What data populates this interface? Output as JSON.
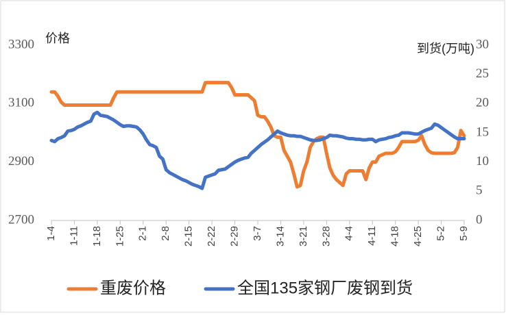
{
  "chart_data": {
    "type": "line",
    "y_label": "价格",
    "y2_label": "到货(万吨)",
    "categories": [
      "1-4",
      null,
      null,
      null,
      null,
      null,
      null,
      "1-11",
      null,
      null,
      null,
      null,
      null,
      null,
      "1-18",
      null,
      null,
      null,
      null,
      null,
      null,
      "1-25",
      null,
      null,
      null,
      null,
      null,
      null,
      "2-1",
      null,
      null,
      null,
      null,
      null,
      null,
      "2-8",
      null,
      null,
      null,
      null,
      null,
      null,
      "2-15",
      null,
      null,
      null,
      null,
      null,
      null,
      "2-22",
      null,
      null,
      null,
      null,
      null,
      null,
      "2-29",
      null,
      null,
      null,
      null,
      null,
      null,
      "3-7",
      null,
      null,
      null,
      null,
      null,
      null,
      "3-14",
      null,
      null,
      null,
      null,
      null,
      null,
      "3-21",
      null,
      null,
      null,
      null,
      null,
      null,
      "3-28",
      null,
      null,
      null,
      null,
      null,
      null,
      "4-4",
      null,
      null,
      null,
      null,
      null,
      null,
      "4-11",
      null,
      null,
      null,
      null,
      null,
      null,
      "4-18",
      null,
      null,
      null,
      null,
      null,
      null,
      "4-25",
      null,
      null,
      null,
      null,
      null,
      null,
      "5-2",
      null,
      null,
      null,
      null,
      null,
      null,
      "5-9"
    ],
    "series": [
      {
        "name": "重废价格",
        "color": "#ed7d31",
        "axis": "y",
        "values": [
          3140,
          3140,
          3125,
          3105,
          3095,
          3095,
          3095,
          3095,
          3095,
          3095,
          3095,
          3095,
          3095,
          3095,
          3095,
          3095,
          3095,
          3095,
          3095,
          3120,
          3140,
          3140,
          3140,
          3140,
          3140,
          3140,
          3140,
          3140,
          3140,
          3140,
          3140,
          3140,
          3140,
          3140,
          3140,
          3140,
          3140,
          3140,
          3140,
          3140,
          3140,
          3140,
          3140,
          3140,
          3140,
          3140,
          3140,
          3172,
          3172,
          3172,
          3172,
          3172,
          3172,
          3172,
          3172,
          3155,
          3130,
          3130,
          3130,
          3130,
          3130,
          3120,
          3110,
          3060,
          3055,
          3055,
          3040,
          3020,
          2990,
          2985,
          2985,
          2940,
          2920,
          2900,
          2860,
          2815,
          2820,
          2870,
          2900,
          2950,
          2970,
          2980,
          2985,
          2985,
          2930,
          2880,
          2855,
          2840,
          2830,
          2820,
          2860,
          2870,
          2870,
          2870,
          2870,
          2870,
          2840,
          2880,
          2900,
          2900,
          2920,
          2925,
          2930,
          2930,
          2930,
          2935,
          2950,
          2970,
          2970,
          2970,
          2970,
          2970,
          2975,
          2990,
          2960,
          2940,
          2932,
          2930,
          2930,
          2930,
          2930,
          2930,
          2930,
          2932,
          2950,
          3008,
          2990
        ]
      },
      {
        "name": "全国135家钢厂废钢到货",
        "color": "#4472c4",
        "axis": "y2",
        "values": [
          13.7,
          13.5,
          14,
          14.2,
          14.5,
          15.3,
          15.4,
          15.6,
          16,
          16.2,
          16.5,
          16.8,
          17,
          18.2,
          18.5,
          18,
          17.9,
          17.8,
          17.5,
          17.2,
          16.8,
          16.4,
          16.1,
          16.2,
          16.2,
          16.1,
          16,
          15.5,
          14.8,
          13.8,
          13,
          12.8,
          12.5,
          11,
          10.5,
          8.7,
          8.2,
          7.9,
          7.6,
          7.3,
          7,
          6.8,
          6.5,
          6.2,
          6,
          5.8,
          5.5,
          7.4,
          7.6,
          7.8,
          8,
          8.6,
          8.7,
          8.8,
          9.2,
          9.6,
          10,
          10.3,
          10.5,
          10.7,
          10.8,
          11.5,
          12,
          12.5,
          13,
          13.4,
          13.8,
          14.3,
          14.8,
          15.3,
          15,
          14.8,
          14.6,
          14.5,
          14.5,
          14.4,
          14.4,
          14.2,
          14,
          13.8,
          13.7,
          13.7,
          13.8,
          14,
          14.2,
          14.6,
          14.5,
          14.5,
          14.4,
          14.3,
          14.1,
          14,
          14,
          13.9,
          13.9,
          13.8,
          13.8,
          13.9,
          13.9,
          13.5,
          13.8,
          13.9,
          14,
          14.2,
          14.3,
          14.5,
          14.6,
          15,
          15,
          15,
          14.9,
          14.8,
          14.8,
          15.1,
          15.4,
          15.6,
          15.8,
          16.5,
          16.3,
          15.9,
          15.5,
          15.1,
          14.7,
          14.3,
          14,
          14,
          14
        ]
      }
    ],
    "ylim": [
      2700,
      3300
    ],
    "yticks": [
      2700,
      2900,
      3100,
      3300
    ],
    "y2lim": [
      0,
      30
    ],
    "y2ticks": [
      0,
      5,
      10,
      15,
      20,
      25,
      30
    ],
    "legend": "bottom"
  }
}
